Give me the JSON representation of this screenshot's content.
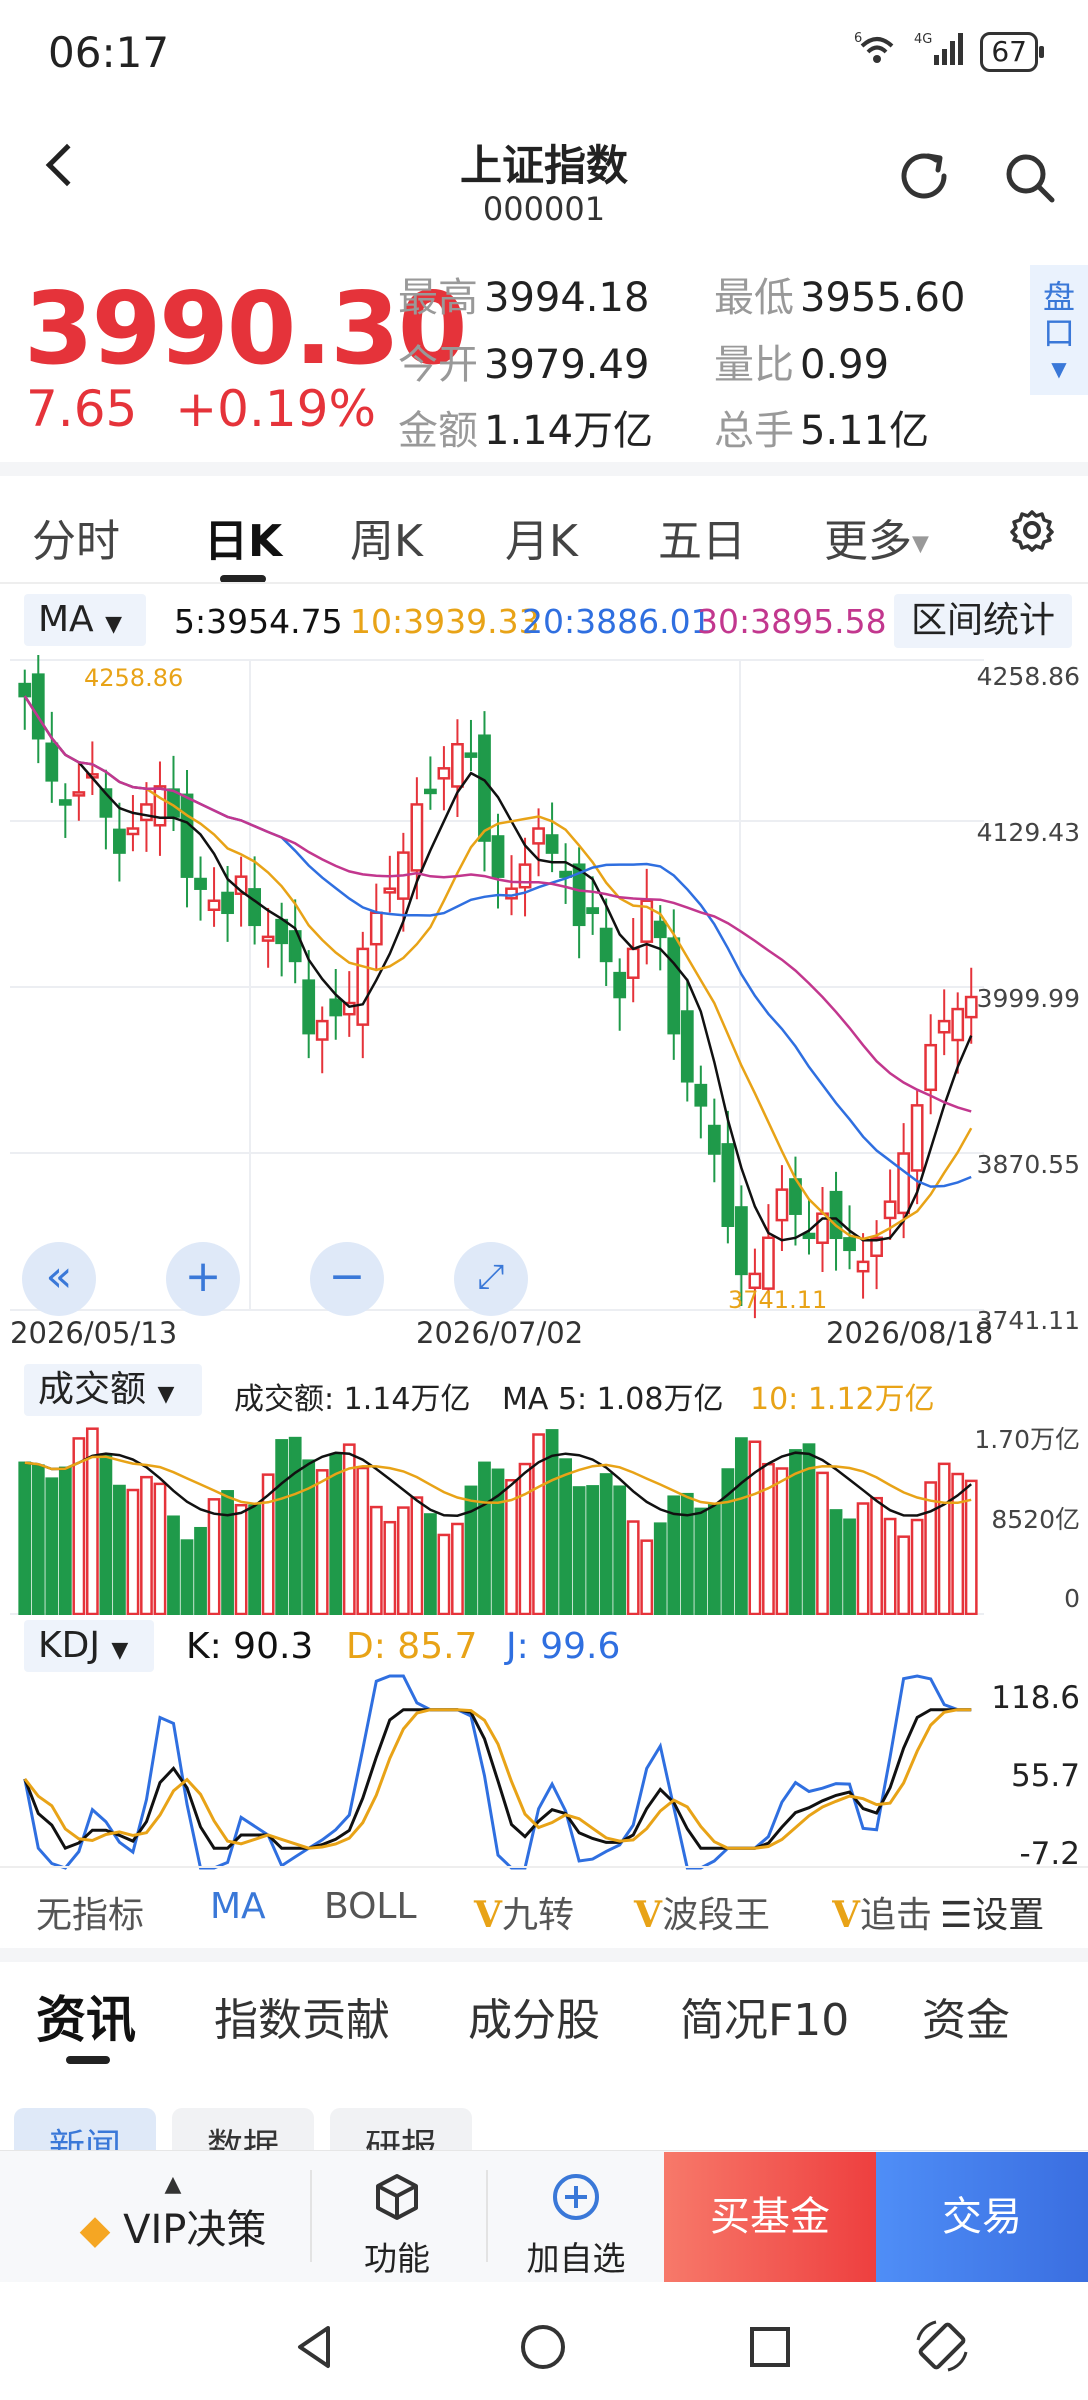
{
  "status": {
    "time": "06:17",
    "wifi": "6",
    "net": "4G",
    "battery": "67"
  },
  "header": {
    "title": "上证指数",
    "code": "000001"
  },
  "quote": {
    "price": "3990.30",
    "change": "7.65",
    "change_pct": "+0.19%",
    "stats": [
      {
        "k": "最高",
        "v": "3994.18"
      },
      {
        "k": "最低",
        "v": "3955.60"
      },
      {
        "k": "今开",
        "v": "3979.49"
      },
      {
        "k": "量比",
        "v": "0.99"
      },
      {
        "k": "金额",
        "v": "1.14万亿"
      },
      {
        "k": "总手",
        "v": "5.11亿"
      }
    ],
    "pankou": "盘口"
  },
  "ktabs": [
    "分时",
    "日K",
    "周K",
    "月K",
    "五日",
    "更多"
  ],
  "ma": {
    "selector": "MA",
    "ma5": "5:3954.75",
    "ma10": "10:3939.33",
    "ma20": "20:3886.01",
    "ma30": "30:3895.58",
    "range_stat": "区间统计"
  },
  "price_axis": [
    "4258.86",
    "4129.43",
    "3999.99",
    "3870.55",
    "3741.11"
  ],
  "annotations": {
    "high": "4258.86",
    "low": "3741.11"
  },
  "dates": [
    "2026/05/13",
    "2026/07/02",
    "2026/08/18"
  ],
  "volume": {
    "selector": "成交额",
    "label": "成交额: 1.14万亿",
    "ma5": "MA 5: 1.08万亿",
    "ma10": "10: 1.12万亿",
    "axis": [
      "1.70万亿",
      "8520亿",
      "0"
    ]
  },
  "kdj": {
    "selector": "KDJ",
    "k": "K: 90.3",
    "d": "D: 85.7",
    "j": "J: 99.6",
    "axis": [
      "118.6",
      "55.7",
      "-7.2"
    ]
  },
  "indicators": {
    "none": "无指标",
    "ma": "MA",
    "boll": "BOLL",
    "v1": "九转",
    "v2": "波段王",
    "v3": "追击",
    "settings": "设置"
  },
  "news_tabs": [
    "资讯",
    "指数贡献",
    "成分股",
    "简况F10",
    "资金"
  ],
  "sub_tabs": [
    "新闻",
    "数据",
    "研报"
  ],
  "bottom": {
    "vip": "VIP决策",
    "func": "功能",
    "add": "加自选",
    "buy_fund": "买基金",
    "trade": "交易"
  },
  "colors": {
    "up": "#e5333a",
    "down": "#1f9a4a",
    "ma5": "#111111",
    "ma10": "#e8a317",
    "ma20": "#2f6fe0",
    "ma30": "#c2378e",
    "accent": "#3a78d8"
  }
}
